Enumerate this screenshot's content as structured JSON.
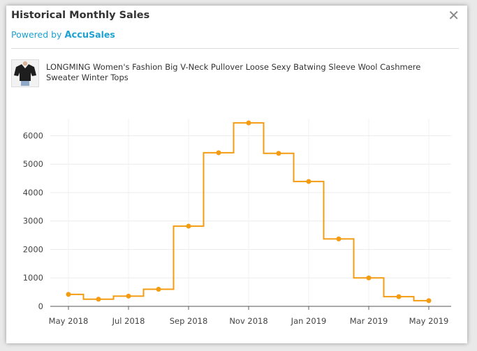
{
  "dialog": {
    "title": "Historical Monthly Sales",
    "powered_prefix": "Powered by ",
    "powered_brand_a": "Accu",
    "powered_brand_b": "Sales",
    "close_icon": "close-icon"
  },
  "product": {
    "title": "LONGMING Women's Fashion Big V-Neck Pullover Loose Sexy Batwing Sleeve Wool Cashmere Sweater Winter Tops",
    "thumbnail_icon": "product-thumbnail"
  },
  "chart_data": {
    "type": "line",
    "step": true,
    "color": "#f39c12",
    "x": [
      "May 2018",
      "Jun 2018",
      "Jul 2018",
      "Aug 2018",
      "Sep 2018",
      "Oct 2018",
      "Nov 2018",
      "Dec 2018",
      "Jan 2019",
      "Feb 2019",
      "Mar 2019",
      "Apr 2019",
      "May 2019"
    ],
    "values": [
      420,
      250,
      360,
      600,
      2820,
      5400,
      6450,
      5380,
      4390,
      2370,
      1000,
      340,
      200
    ],
    "x_ticks": [
      "May 2018",
      "Jul 2018",
      "Sep 2018",
      "Nov 2018",
      "Jan 2019",
      "Mar 2019",
      "May 2019"
    ],
    "y_ticks": [
      0,
      1000,
      2000,
      3000,
      4000,
      5000,
      6000
    ],
    "ylim": [
      0,
      6600
    ],
    "grid": true
  }
}
